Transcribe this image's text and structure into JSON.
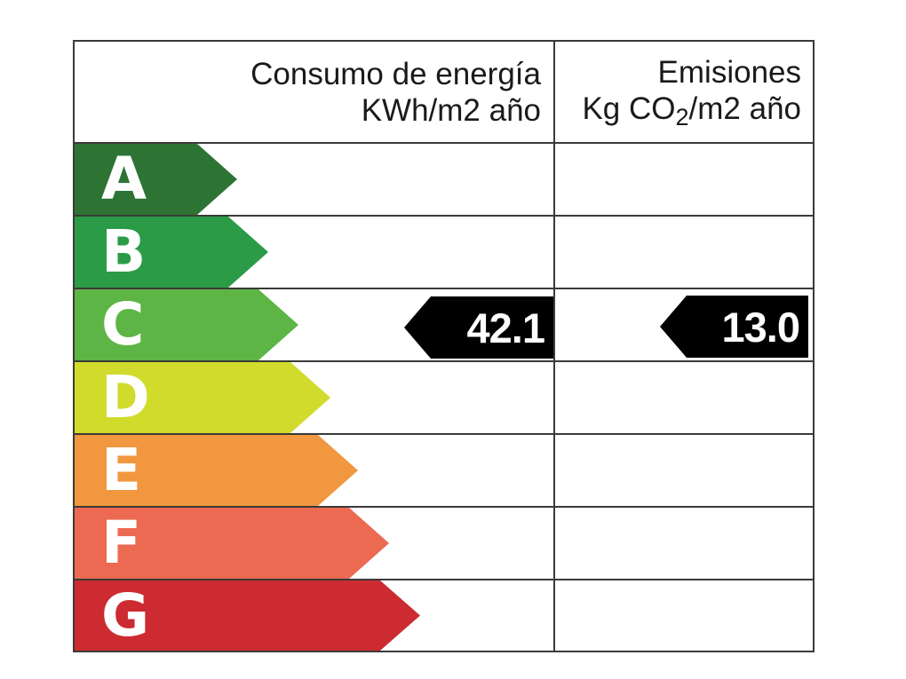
{
  "header": {
    "col1": {
      "line1": "Consumo de energía",
      "line2": "KWh/m2 año"
    },
    "col2": {
      "line1": "Emisiones",
      "line2_prefix": "Kg CO",
      "line2_sub": "2",
      "line2_suffix": "/m2 año"
    }
  },
  "ratings": [
    {
      "letter": "A",
      "color": "#2d7434"
    },
    {
      "letter": "B",
      "color": "#2b9b48"
    },
    {
      "letter": "C",
      "color": "#5db545"
    },
    {
      "letter": "D",
      "color": "#d1db2c"
    },
    {
      "letter": "E",
      "color": "#f0973f"
    },
    {
      "letter": "F",
      "color": "#ec6a52"
    },
    {
      "letter": "G",
      "color": "#cb2b31"
    }
  ],
  "values": {
    "consumption": "42.1",
    "emissions": "13.0"
  },
  "colors": {
    "border": "#3a3a37",
    "value_arrow": "#000000",
    "letter_text": "#ffffff",
    "header_text": "#1a1a1a"
  },
  "chart_data": {
    "type": "bar",
    "title": "",
    "categories": [
      "A",
      "B",
      "C",
      "D",
      "E",
      "F",
      "G"
    ],
    "category_colors": [
      "#2d7434",
      "#2b9b48",
      "#5db545",
      "#d1db2c",
      "#f0973f",
      "#ec6a52",
      "#cb2b31"
    ],
    "series": [
      {
        "name": "Consumo de energía KWh/m2 año",
        "rating": "C",
        "value": 42.1
      },
      {
        "name": "Emisiones Kg CO2/m2 año",
        "rating": "C",
        "value": 13.0
      }
    ],
    "legend_position": "none",
    "grid": false,
    "orientation": "horizontal"
  }
}
